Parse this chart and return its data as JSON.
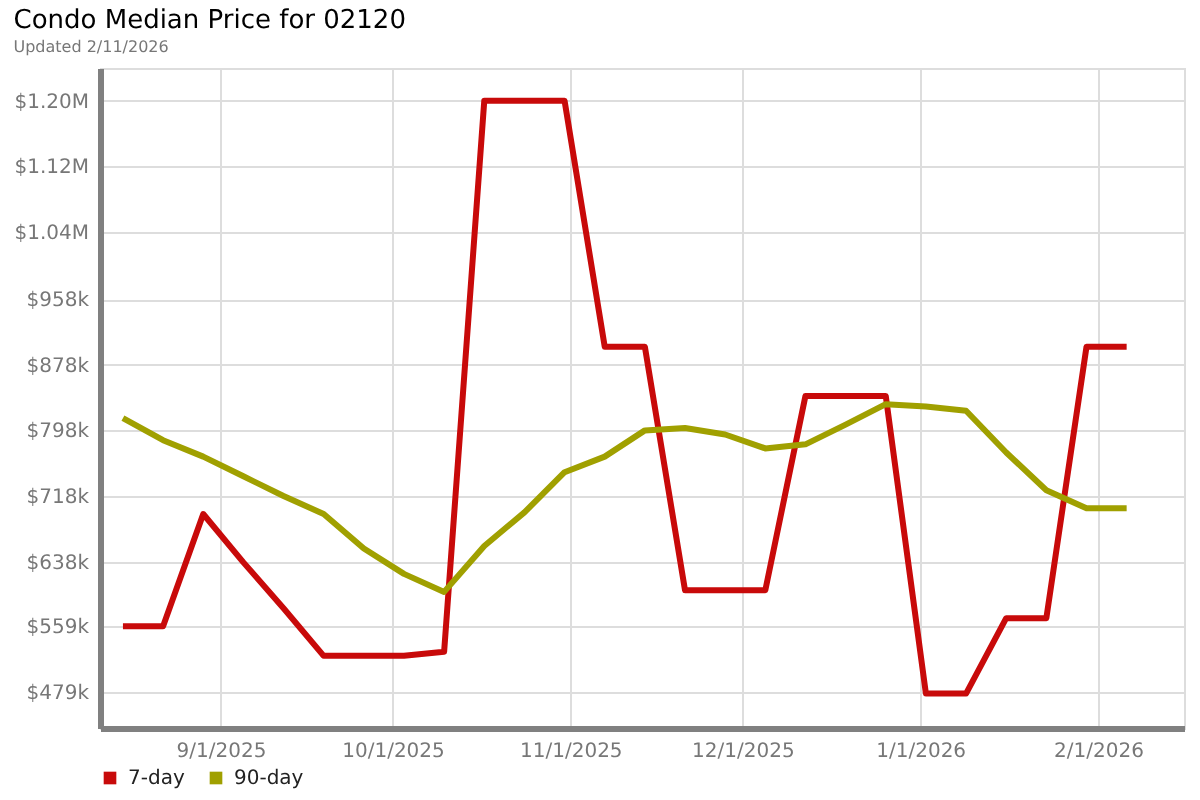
{
  "chart_data": {
    "type": "line",
    "title": "Condo Median Price for 02120",
    "subtitle": "Updated 2/11/2026",
    "x": [
      "2025-08-15",
      "2025-08-22",
      "2025-08-29",
      "2025-09-05",
      "2025-09-12",
      "2025-09-19",
      "2025-09-26",
      "2025-10-03",
      "2025-10-10",
      "2025-10-17",
      "2025-10-24",
      "2025-10-31",
      "2025-11-07",
      "2025-11-14",
      "2025-11-21",
      "2025-11-28",
      "2025-12-05",
      "2025-12-12",
      "2025-12-19",
      "2025-12-26",
      "2026-01-02",
      "2026-01-09",
      "2026-01-16",
      "2026-01-23",
      "2026-01-30",
      "2026-02-06"
    ],
    "series": [
      {
        "name": "7-day",
        "color": "#c80a0a",
        "values": [
          559000,
          559000,
          696000,
          637000,
          581000,
          523000,
          523000,
          523000,
          528000,
          1200000,
          1200000,
          1200000,
          900000,
          900000,
          603000,
          603000,
          603000,
          840000,
          840000,
          840000,
          477000,
          477000,
          569000,
          569000,
          900000,
          900000
        ]
      },
      {
        "name": "90-day",
        "color": "#a0a000",
        "values": [
          813000,
          786000,
          766000,
          742000,
          718000,
          696000,
          654000,
          623000,
          601000,
          657000,
          698000,
          747000,
          766000,
          798000,
          801000,
          793000,
          776000,
          781000,
          805000,
          830000,
          827000,
          822000,
          771000,
          725000,
          703000,
          703000
        ]
      }
    ],
    "xlim": [
      "2025-08-11",
      "2026-02-16"
    ],
    "xticks": [
      {
        "value": "2025-09-01",
        "label": "9/1/2025"
      },
      {
        "value": "2025-10-01",
        "label": "10/1/2025"
      },
      {
        "value": "2025-11-01",
        "label": "11/1/2025"
      },
      {
        "value": "2025-12-01",
        "label": "12/1/2025"
      },
      {
        "value": "2026-01-01",
        "label": "1/1/2026"
      },
      {
        "value": "2026-02-01",
        "label": "2/1/2026"
      }
    ],
    "ylim": [
      435000,
      1240000
    ],
    "yticks": [
      {
        "value": 479000,
        "label": "$479k"
      },
      {
        "value": 559000,
        "label": "$559k"
      },
      {
        "value": 638000,
        "label": "$638k"
      },
      {
        "value": 718000,
        "label": "$718k"
      },
      {
        "value": 798000,
        "label": "$798k"
      },
      {
        "value": 878000,
        "label": "$878k"
      },
      {
        "value": 958000,
        "label": "$958k"
      },
      {
        "value": 1040000,
        "label": "$1.04M"
      },
      {
        "value": 1120000,
        "label": "$1.12M"
      },
      {
        "value": 1200000,
        "label": "$1.20M"
      }
    ],
    "grid": true,
    "legend": "bottom left",
    "marker": "none",
    "line_style": "solid"
  }
}
